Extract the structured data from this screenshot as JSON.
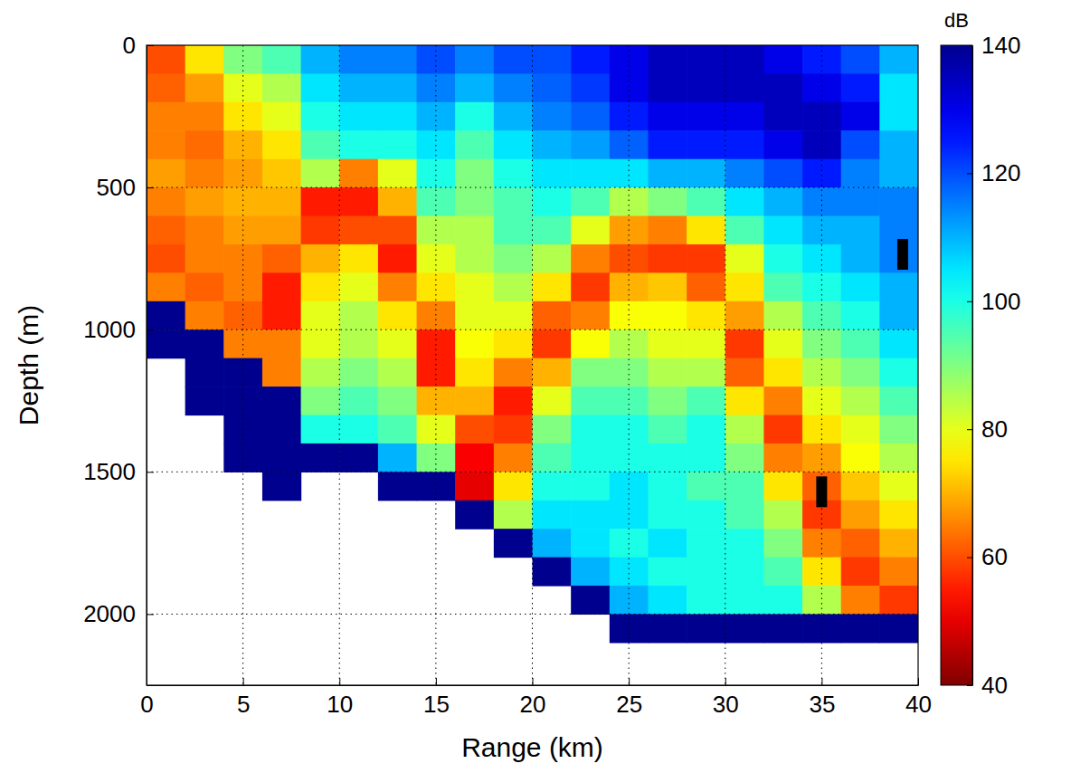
{
  "chart_data": {
    "type": "heatmap",
    "xlabel": "Range (km)",
    "ylabel": "Depth (m)",
    "xlim": [
      0,
      40
    ],
    "ylim": [
      0,
      2250
    ],
    "xticks": [
      0,
      5,
      10,
      15,
      20,
      25,
      30,
      35,
      40
    ],
    "yticks": [
      0,
      500,
      1000,
      1500,
      2000
    ],
    "grid": true,
    "x": [
      1,
      3,
      5,
      7,
      9,
      11,
      13,
      15,
      17,
      19,
      21,
      23,
      25,
      27,
      29,
      31,
      33,
      35,
      37,
      39
    ],
    "y": [
      50,
      150,
      250,
      350,
      450,
      550,
      650,
      750,
      850,
      950,
      1050,
      1150,
      1250,
      1350,
      1450,
      1550,
      1650,
      1750,
      1850,
      1950,
      2050
    ],
    "values": [
      [
        60,
        75,
        90,
        95,
        110,
        115,
        115,
        120,
        115,
        120,
        120,
        125,
        130,
        135,
        135,
        135,
        130,
        125,
        120,
        110
      ],
      [
        62,
        68,
        80,
        85,
        105,
        110,
        110,
        115,
        110,
        115,
        118,
        122,
        130,
        135,
        135,
        135,
        135,
        130,
        125,
        105
      ],
      [
        65,
        65,
        75,
        80,
        100,
        105,
        105,
        110,
        100,
        110,
        115,
        118,
        125,
        130,
        130,
        130,
        135,
        135,
        130,
        105
      ],
      [
        65,
        63,
        70,
        75,
        95,
        100,
        100,
        105,
        95,
        105,
        110,
        112,
        118,
        125,
        125,
        125,
        130,
        135,
        120,
        110
      ],
      [
        68,
        65,
        68,
        72,
        85,
        65,
        80,
        100,
        90,
        100,
        105,
        105,
        105,
        110,
        110,
        115,
        120,
        125,
        115,
        110
      ],
      [
        65,
        68,
        70,
        70,
        55,
        55,
        70,
        95,
        90,
        95,
        100,
        95,
        85,
        90,
        95,
        105,
        110,
        115,
        115,
        115
      ],
      [
        62,
        65,
        68,
        68,
        58,
        60,
        60,
        85,
        85,
        95,
        95,
        80,
        68,
        65,
        75,
        95,
        105,
        110,
        110,
        115
      ],
      [
        60,
        65,
        65,
        62,
        70,
        75,
        55,
        80,
        85,
        90,
        85,
        65,
        60,
        58,
        58,
        80,
        100,
        105,
        110,
        115
      ],
      [
        65,
        62,
        65,
        55,
        75,
        80,
        65,
        75,
        80,
        85,
        75,
        58,
        70,
        72,
        62,
        75,
        95,
        100,
        105,
        110
      ],
      [
        140,
        65,
        62,
        55,
        80,
        85,
        75,
        65,
        80,
        80,
        62,
        65,
        78,
        78,
        75,
        68,
        85,
        95,
        100,
        110
      ],
      [
        140,
        140,
        65,
        65,
        80,
        85,
        80,
        55,
        78,
        75,
        58,
        78,
        85,
        80,
        80,
        58,
        80,
        90,
        95,
        105
      ],
      [
        null,
        140,
        140,
        65,
        85,
        90,
        85,
        55,
        75,
        65,
        70,
        90,
        90,
        85,
        85,
        62,
        75,
        85,
        90,
        100
      ],
      [
        null,
        140,
        140,
        140,
        90,
        95,
        90,
        70,
        70,
        55,
        80,
        95,
        95,
        90,
        95,
        75,
        65,
        80,
        85,
        95
      ],
      [
        null,
        null,
        140,
        140,
        100,
        100,
        95,
        80,
        60,
        58,
        90,
        100,
        100,
        95,
        100,
        85,
        58,
        75,
        80,
        90
      ],
      [
        null,
        null,
        140,
        140,
        140,
        140,
        110,
        90,
        52,
        65,
        95,
        100,
        100,
        100,
        100,
        90,
        65,
        68,
        78,
        85
      ],
      [
        null,
        null,
        null,
        140,
        null,
        null,
        140,
        140,
        50,
        75,
        100,
        100,
        105,
        100,
        95,
        95,
        75,
        62,
        72,
        80
      ],
      [
        null,
        null,
        null,
        null,
        null,
        null,
        null,
        null,
        140,
        85,
        105,
        105,
        105,
        100,
        100,
        95,
        85,
        58,
        68,
        75
      ],
      [
        null,
        null,
        null,
        null,
        null,
        null,
        null,
        null,
        null,
        140,
        110,
        105,
        100,
        105,
        100,
        100,
        90,
        65,
        62,
        70
      ],
      [
        null,
        null,
        null,
        null,
        null,
        null,
        null,
        null,
        null,
        null,
        140,
        110,
        105,
        100,
        100,
        100,
        95,
        75,
        58,
        65
      ],
      [
        null,
        null,
        null,
        null,
        null,
        null,
        null,
        null,
        null,
        null,
        null,
        140,
        110,
        105,
        100,
        100,
        100,
        85,
        65,
        58
      ],
      [
        null,
        null,
        null,
        null,
        null,
        null,
        null,
        null,
        null,
        null,
        null,
        null,
        140,
        140,
        140,
        140,
        140,
        140,
        140,
        140
      ]
    ],
    "colorbar": {
      "title": "dB",
      "range": [
        40,
        140
      ],
      "ticks": [
        40,
        60,
        80,
        100,
        120,
        140
      ]
    },
    "points": {
      "x": [
        39.2,
        35
      ],
      "y": [
        735,
        1570
      ],
      "color": "#000000"
    }
  }
}
